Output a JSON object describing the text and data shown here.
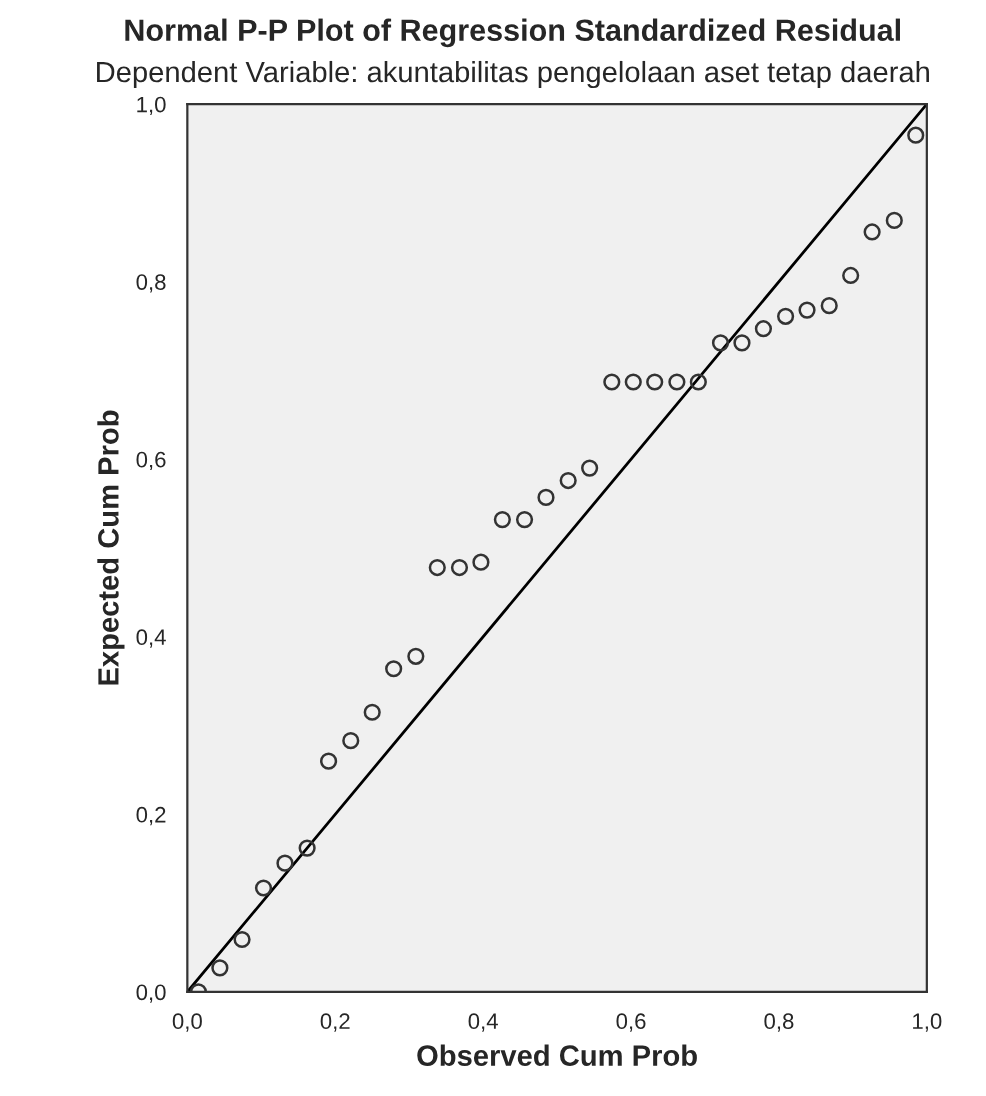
{
  "chart_data": {
    "type": "scatter",
    "title": "Normal P-P Plot of Regression Standardized Residual",
    "subtitle": "Dependent Variable: akuntabilitas pengelolaan aset tetap daerah",
    "xlabel": "Observed Cum Prob",
    "ylabel": "Expected Cum Prob",
    "series": [
      {
        "color": "#333333",
        "marker": "circle",
        "x": [
          0.015,
          0.044,
          0.074,
          0.103,
          0.132,
          0.162,
          0.191,
          0.221,
          0.25,
          0.279,
          0.309,
          0.338,
          0.368,
          0.397,
          0.426,
          0.456,
          0.485,
          0.515,
          0.544,
          0.574,
          0.603,
          0.632,
          0.662,
          0.691,
          0.721,
          0.75,
          0.779,
          0.809,
          0.838,
          0.868,
          0.897,
          0.926,
          0.956,
          0.985
        ],
        "values": [
          0.0,
          0.027,
          0.059,
          0.117,
          0.145,
          0.162,
          0.26,
          0.283,
          0.315,
          0.364,
          0.378,
          0.478,
          0.478,
          0.484,
          0.532,
          0.532,
          0.557,
          0.576,
          0.59,
          0.687,
          0.687,
          0.687,
          0.687,
          0.687,
          0.731,
          0.731,
          0.747,
          0.761,
          0.768,
          0.773,
          0.807,
          0.856,
          0.869,
          0.965
        ]
      },
      {
        "type": "line",
        "color": "#000000",
        "marker": "none",
        "x": [
          0.0,
          1.0
        ],
        "values": [
          0.0,
          1.0
        ]
      }
    ],
    "xlim": [
      0,
      1
    ],
    "ylim": [
      0,
      1
    ],
    "xticks": [
      {
        "value": 0,
        "label": "0,0"
      },
      {
        "value": 0.2,
        "label": "0,2"
      },
      {
        "value": 0.4,
        "label": "0,4"
      },
      {
        "value": 0.6,
        "label": "0,6"
      },
      {
        "value": 0.8,
        "label": "0,8"
      },
      {
        "value": 1,
        "label": "1,0"
      }
    ],
    "yticks": [
      {
        "value": 0,
        "label": "0,0"
      },
      {
        "value": 0.2,
        "label": "0,2"
      },
      {
        "value": 0.4,
        "label": "0,4"
      },
      {
        "value": 0.6,
        "label": "0,6"
      },
      {
        "value": 0.8,
        "label": "0,8"
      },
      {
        "value": 1,
        "label": "1,0"
      }
    ],
    "grid": false,
    "legend": false
  }
}
